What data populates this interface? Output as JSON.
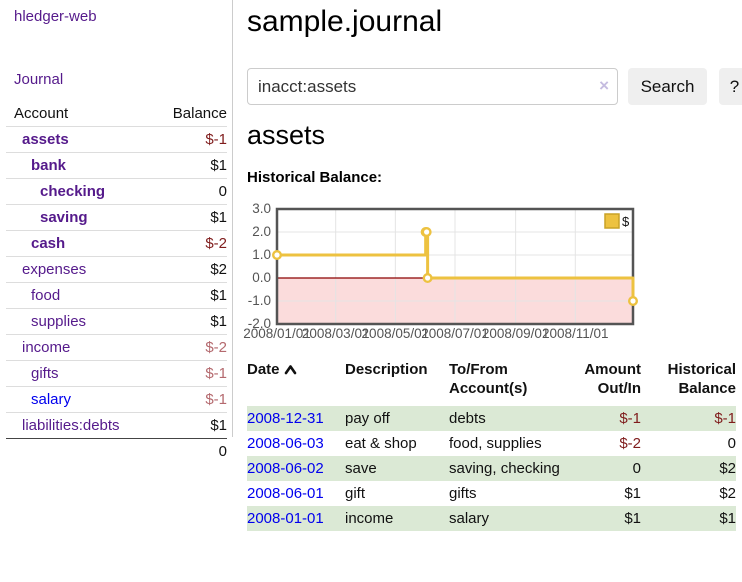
{
  "app": {
    "brand": "hledger-web",
    "nav_journal": "Journal"
  },
  "sidebar": {
    "header": {
      "account": "Account",
      "balance": "Balance"
    },
    "accounts": [
      {
        "label": "assets",
        "balance": "$-1"
      },
      {
        "label": "bank",
        "balance": "$1"
      },
      {
        "label": "checking",
        "balance": "0"
      },
      {
        "label": "saving",
        "balance": "$1"
      },
      {
        "label": "cash",
        "balance": "$-2"
      },
      {
        "label": "expenses",
        "balance": "$2"
      },
      {
        "label": "food",
        "balance": "$1"
      },
      {
        "label": "supplies",
        "balance": "$1"
      },
      {
        "label": "income",
        "balance": "$-2"
      },
      {
        "label": "gifts",
        "balance": "$-1"
      },
      {
        "label": "salary",
        "balance": "$-1"
      },
      {
        "label": "liabilities:debts",
        "balance": "$1"
      }
    ],
    "total": "0"
  },
  "header": {
    "title": "sample.journal"
  },
  "search": {
    "value": "inacct:assets",
    "clear": "×",
    "button": "Search",
    "help": "?"
  },
  "account_page": {
    "title": "assets",
    "chart_label": "Historical Balance:"
  },
  "chart_data": {
    "type": "line",
    "step": true,
    "title": "Historical Balance",
    "legend_label": "$",
    "legend_position": "top-right",
    "grid": true,
    "line_color": "#edc240",
    "marker_fill": "#ffffff",
    "grid_color": "#e4e4e4",
    "border_color": "#545454",
    "zero_line_color": "#8b0000",
    "negative_fill": "#fbdcdc",
    "legend_swatch_border": "#c9a227",
    "tick_color": "#545454",
    "xlim": [
      0,
      364
    ],
    "ylim": [
      -2,
      3
    ],
    "points": [
      {
        "x": 0,
        "y": 1,
        "date": "2008-01-01"
      },
      {
        "x": 152,
        "y": 2,
        "date": "2008-06-01"
      },
      {
        "x": 153,
        "y": 2,
        "date": "2008-06-02"
      },
      {
        "x": 154,
        "y": 0,
        "date": "2008-06-03"
      },
      {
        "x": 364,
        "y": -1,
        "date": "2008-12-31"
      }
    ],
    "yticks": [
      {
        "v": 3,
        "label": "3.0"
      },
      {
        "v": 2,
        "label": "2.0"
      },
      {
        "v": 1,
        "label": "1.0"
      },
      {
        "v": 0,
        "label": "0.0"
      },
      {
        "v": -1,
        "label": "-1.0"
      },
      {
        "v": -2,
        "label": "-2.0"
      }
    ],
    "xticks": [
      {
        "x": 0,
        "label": "2008/01/01"
      },
      {
        "x": 60,
        "label": "2008/03/01"
      },
      {
        "x": 121,
        "label": "2008/05/01"
      },
      {
        "x": 182,
        "label": "2008/07/01"
      },
      {
        "x": 244,
        "label": "2008/09/01"
      },
      {
        "x": 305,
        "label": "2008/11/01"
      }
    ]
  },
  "journal_table": {
    "headers": {
      "date": "Date",
      "description": "Description",
      "accounts_line1": "To/From",
      "accounts_line2": "Account(s)",
      "amount_line1": "Amount",
      "amount_line2": "Out/In",
      "balance_line1": "Historical",
      "balance_line2": "Balance"
    },
    "rows": [
      {
        "date": "2008-12-31",
        "description": "pay off",
        "accounts": "debts",
        "amount": "$-1",
        "balance": "$-1"
      },
      {
        "date": "2008-06-03",
        "description": "eat & shop",
        "accounts": "food, supplies",
        "amount": "$-2",
        "balance": "0"
      },
      {
        "date": "2008-06-02",
        "description": "save",
        "accounts": "saving, checking",
        "amount": "0",
        "balance": "$2"
      },
      {
        "date": "2008-06-01",
        "description": "gift",
        "accounts": "gifts",
        "amount": "$1",
        "balance": "$2"
      },
      {
        "date": "2008-01-01",
        "description": "income",
        "accounts": "salary",
        "amount": "$1",
        "balance": "$1"
      }
    ]
  }
}
